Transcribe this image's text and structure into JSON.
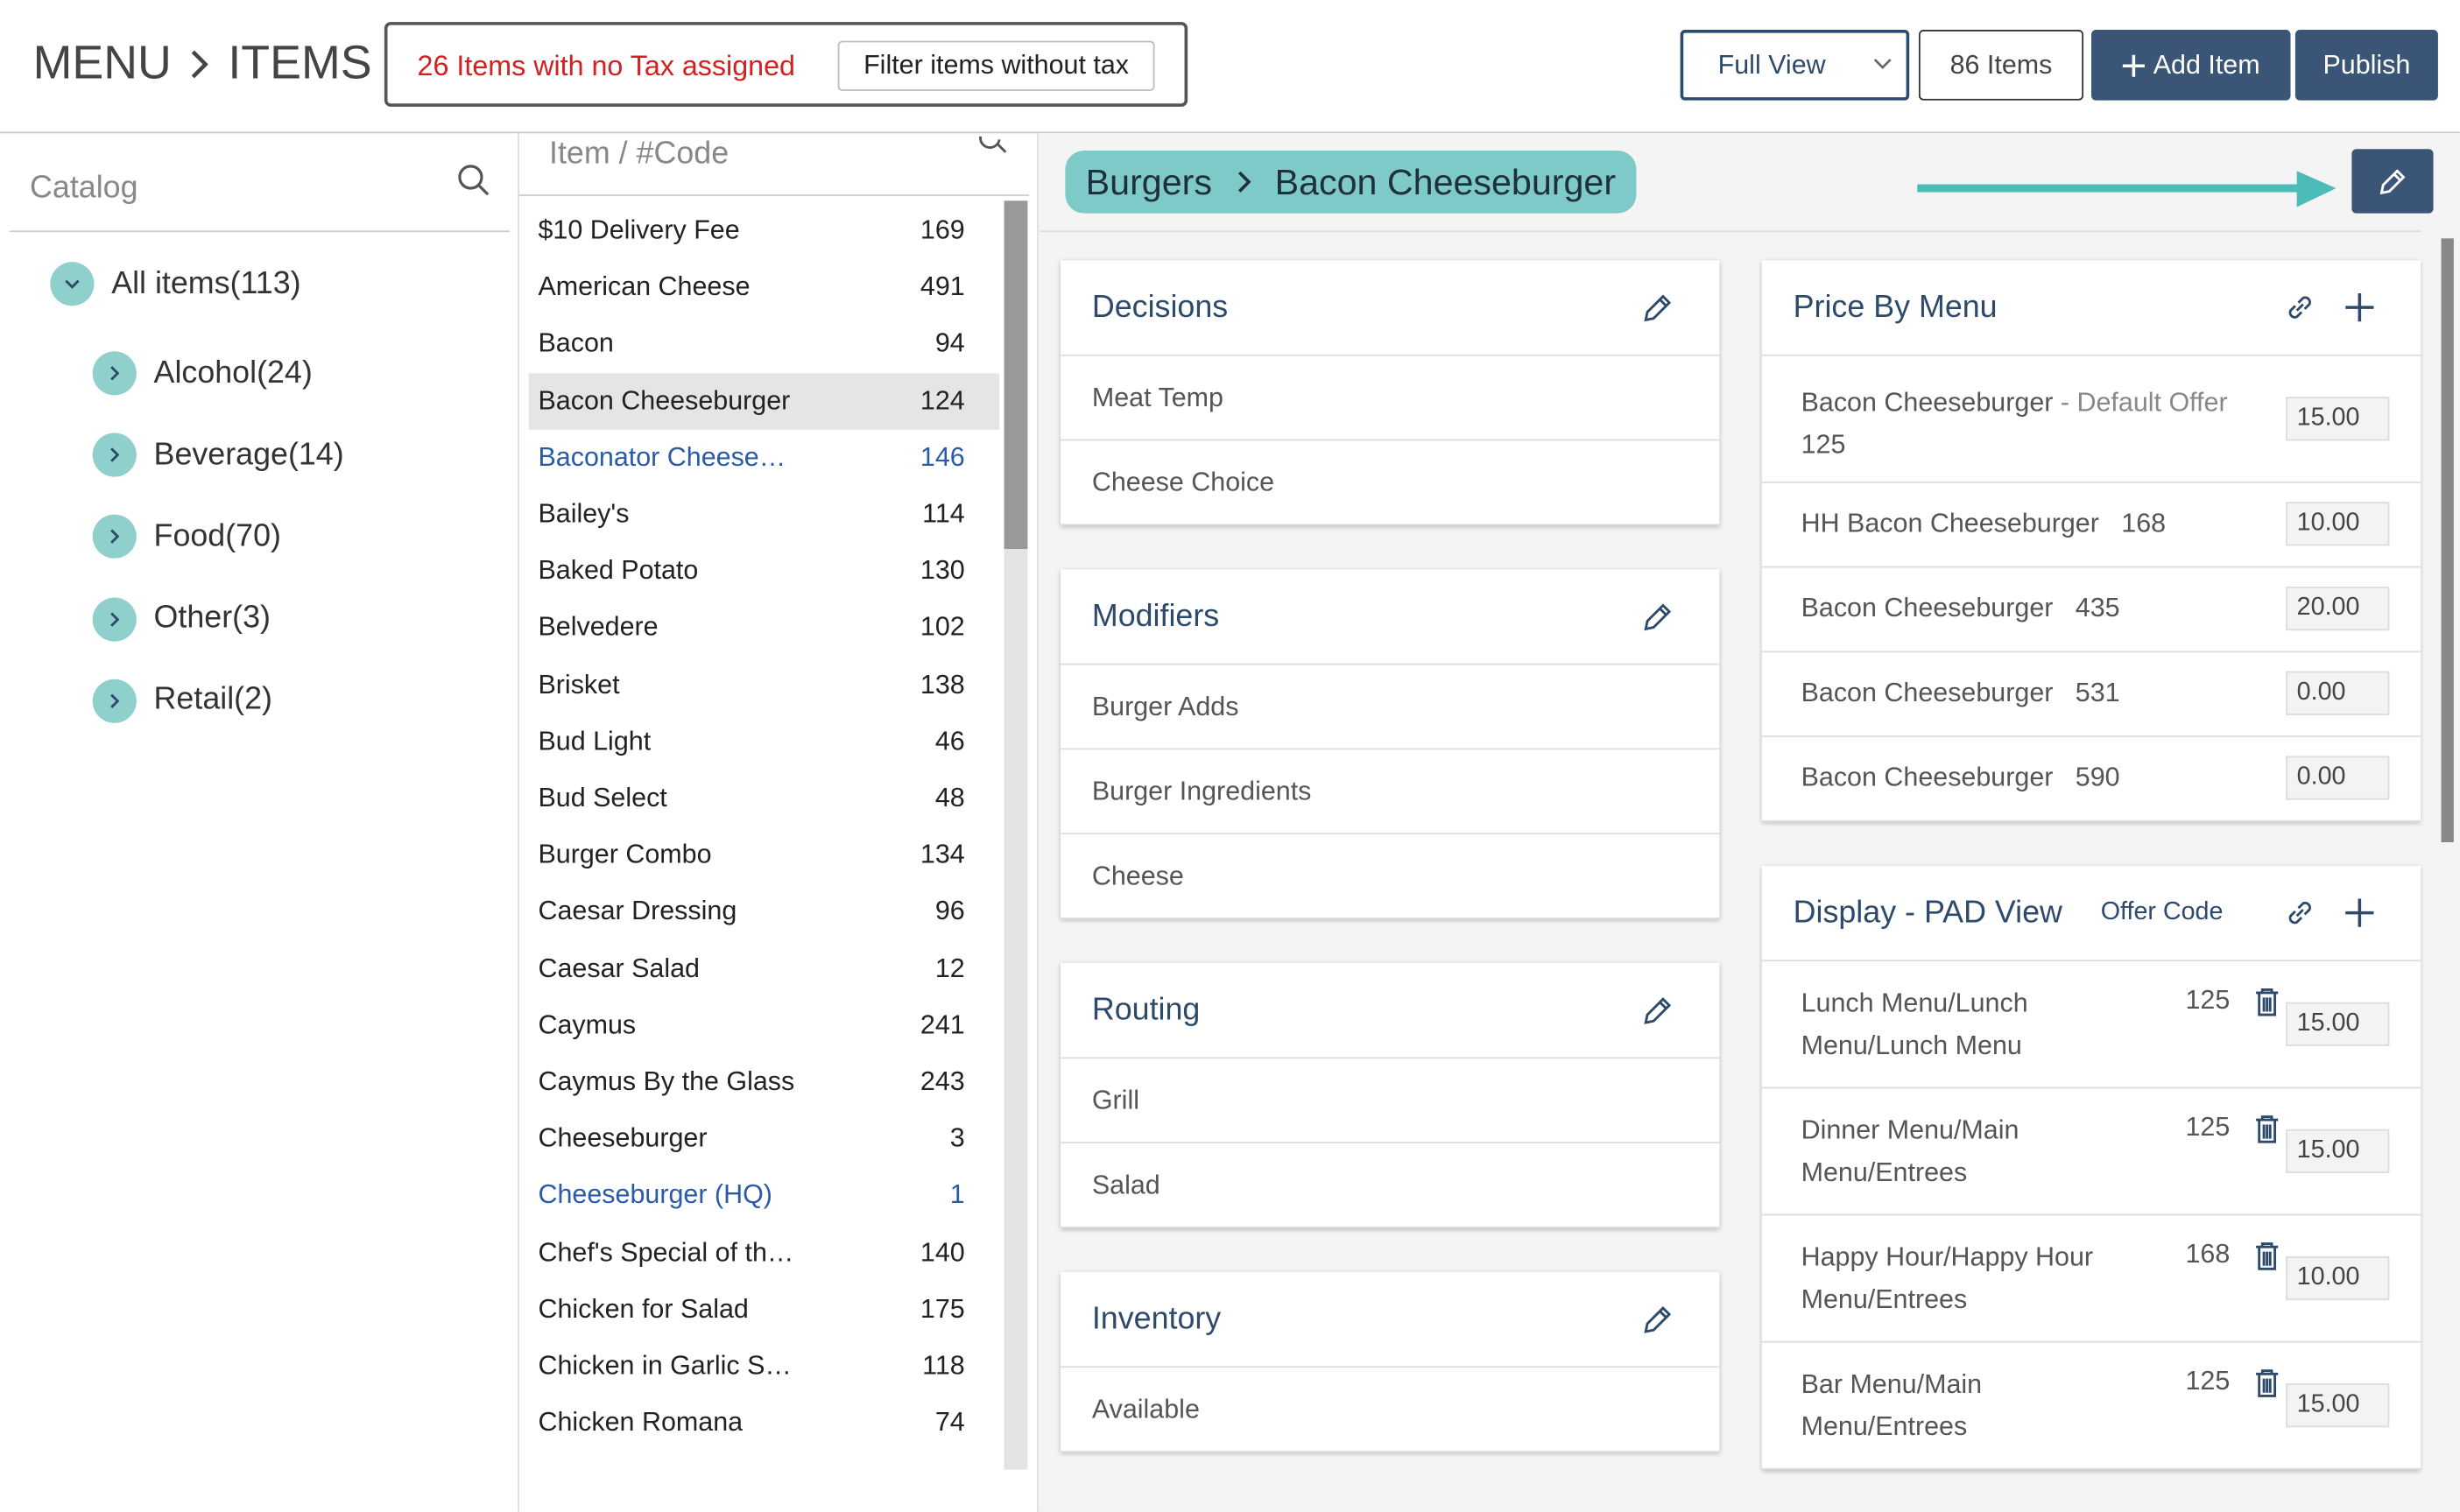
{
  "header": {
    "breadcrumb": [
      "MENU",
      "ITEMS"
    ],
    "tax_alert": {
      "count": "26",
      "text": "Items with no Tax assigned",
      "button": "Filter items without tax"
    },
    "view_select": "Full View",
    "items_count": "86 Items",
    "add_item": "Add Item",
    "publish": "Publish"
  },
  "catalog": {
    "placeholder": "Catalog",
    "root": "All items(113)",
    "groups": [
      "Alcohol(24)",
      "Beverage(14)",
      "Food(70)",
      "Other(3)",
      "Retail(2)"
    ]
  },
  "item_list": {
    "placeholder": "Item / #Code",
    "items": [
      {
        "name": "$10 Delivery Fee",
        "code": 169
      },
      {
        "name": "American Cheese",
        "code": 491
      },
      {
        "name": "Bacon",
        "code": 94
      },
      {
        "name": "Bacon Cheeseburger",
        "code": 124
      },
      {
        "name": "Baconator Cheese…",
        "code": 146
      },
      {
        "name": "Bailey's",
        "code": 114
      },
      {
        "name": "Baked Potato",
        "code": 130
      },
      {
        "name": "Belvedere",
        "code": 102
      },
      {
        "name": "Brisket",
        "code": 138
      },
      {
        "name": "Bud Light",
        "code": 46
      },
      {
        "name": "Bud Select",
        "code": 48
      },
      {
        "name": "Burger Combo",
        "code": 134
      },
      {
        "name": "Caesar Dressing",
        "code": 96
      },
      {
        "name": "Caesar Salad",
        "code": 12
      },
      {
        "name": "Caymus",
        "code": 241
      },
      {
        "name": "Caymus By the Glass",
        "code": 243
      },
      {
        "name": "Cheeseburger",
        "code": 3
      },
      {
        "name": "Cheeseburger (HQ)",
        "code": 1
      },
      {
        "name": "Chef's Special of th…",
        "code": 140
      },
      {
        "name": "Chicken for Salad",
        "code": 175
      },
      {
        "name": "Chicken in Garlic S…",
        "code": 118
      },
      {
        "name": "Chicken Romana",
        "code": 74
      }
    ]
  },
  "detail": {
    "breadcrumb": [
      "Burgers",
      "Bacon Cheeseburger"
    ],
    "cards": [
      {
        "title": "Decisions",
        "rows": [
          "Meat Temp",
          "Cheese Choice"
        ]
      },
      {
        "title": "Modifiers",
        "rows": [
          "Burger Adds",
          "Burger Ingredients",
          "Cheese"
        ]
      },
      {
        "title": "Routing",
        "rows": [
          "Grill",
          "Salad"
        ]
      },
      {
        "title": "Inventory",
        "rows": [
          "Available"
        ]
      }
    ],
    "price_by_menu": {
      "title": "Price By Menu",
      "rows": [
        {
          "name": "Bacon Cheeseburger",
          "note": "- Default Offer",
          "code": 125,
          "price": "15.00"
        },
        {
          "name": "HH Bacon Cheeseburger",
          "code": 168,
          "price": "10.00"
        },
        {
          "name": "Bacon Cheeseburger",
          "code": 435,
          "price": "20.00"
        },
        {
          "name": "Bacon Cheeseburger",
          "code": 531,
          "price": "0.00"
        },
        {
          "name": "Bacon Cheeseburger",
          "code": 590,
          "price": "0.00"
        }
      ]
    },
    "display_pad": {
      "title": "Display - PAD View",
      "offer_code": "Offer Code",
      "rows": [
        {
          "name": "Lunch Menu/Lunch Menu/Lunch Menu",
          "code": 125,
          "price": "15.00"
        },
        {
          "name": "Dinner Menu/Main Menu/Entrees",
          "code": 125,
          "price": "15.00"
        },
        {
          "name": "Happy Hour/Happy Hour Menu/Entrees",
          "code": 168,
          "price": "10.00"
        },
        {
          "name": "Bar Menu/Main Menu/Entrees",
          "code": 125,
          "price": "15.00"
        }
      ]
    }
  }
}
